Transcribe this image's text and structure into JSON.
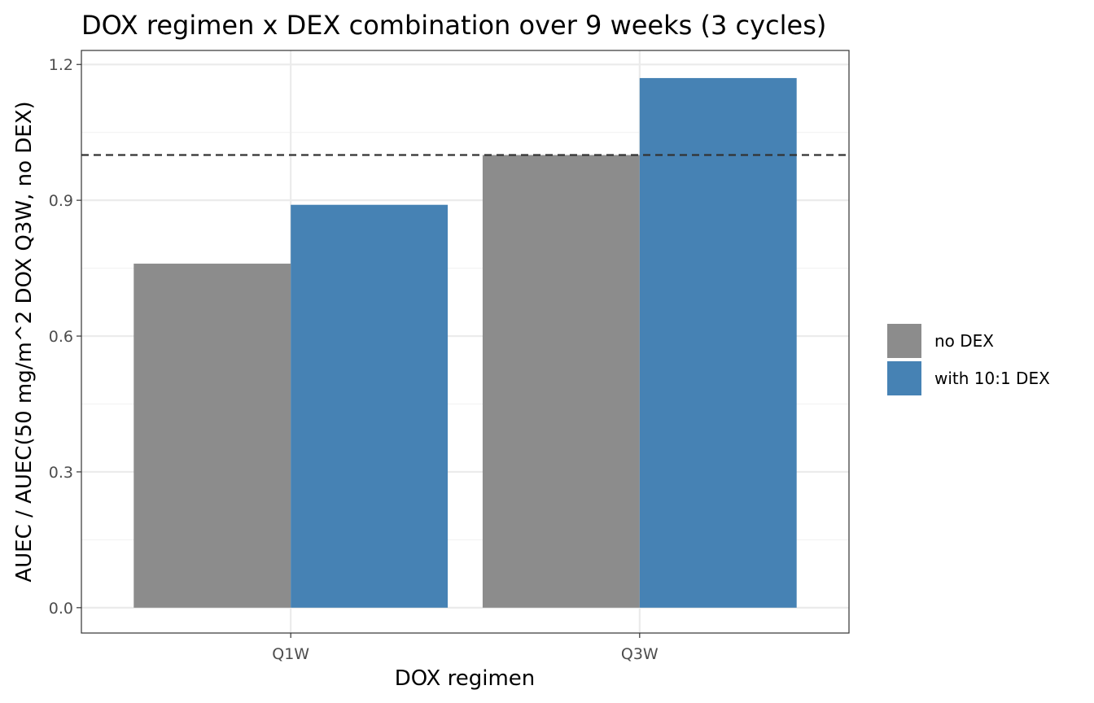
{
  "chart_data": {
    "type": "bar",
    "title": "DOX regimen x DEX combination over 9 weeks (3 cycles)",
    "xlabel": "DOX regimen",
    "ylabel": "AUEC / AUEC(50 mg/m^2 DOX Q3W, no DEX)",
    "categories": [
      "Q1W",
      "Q3W"
    ],
    "series": [
      {
        "name": "no DEX",
        "color": "#8c8c8c",
        "values": [
          0.76,
          1.0
        ]
      },
      {
        "name": "with 10:1 DEX",
        "color": "#4682b4",
        "values": [
          0.89,
          1.17
        ]
      }
    ],
    "ylim": [
      -0.056,
      1.231
    ],
    "yticks": [
      0.0,
      0.3,
      0.6,
      0.9,
      1.2
    ],
    "ytick_labels": [
      "0.0",
      "0.3",
      "0.6",
      "0.9",
      "1.2"
    ],
    "reference_line": {
      "y": 1.0,
      "style": "dashed",
      "color": "#333333"
    },
    "grid": true,
    "legend_position": "right"
  }
}
